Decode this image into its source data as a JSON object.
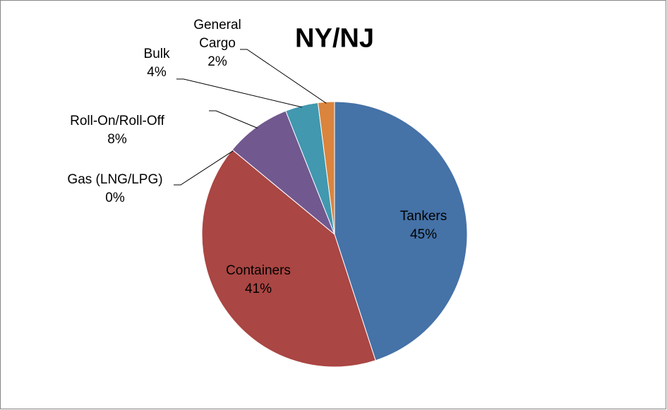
{
  "chart_data": {
    "type": "pie",
    "title": "NY/NJ",
    "categories": [
      "Tankers",
      "Containers",
      "Gas (LNG/LPG)",
      "Roll-On/Roll-Off",
      "Bulk",
      "General Cargo"
    ],
    "values": [
      45,
      41,
      0,
      8,
      4,
      2
    ],
    "value_labels": [
      "45%",
      "41%",
      "0%",
      "8%",
      "4%",
      "2%"
    ],
    "colors": [
      "#4572a7",
      "#aa4643",
      "#89a54e",
      "#71588f",
      "#4198af",
      "#db843d"
    ]
  }
}
